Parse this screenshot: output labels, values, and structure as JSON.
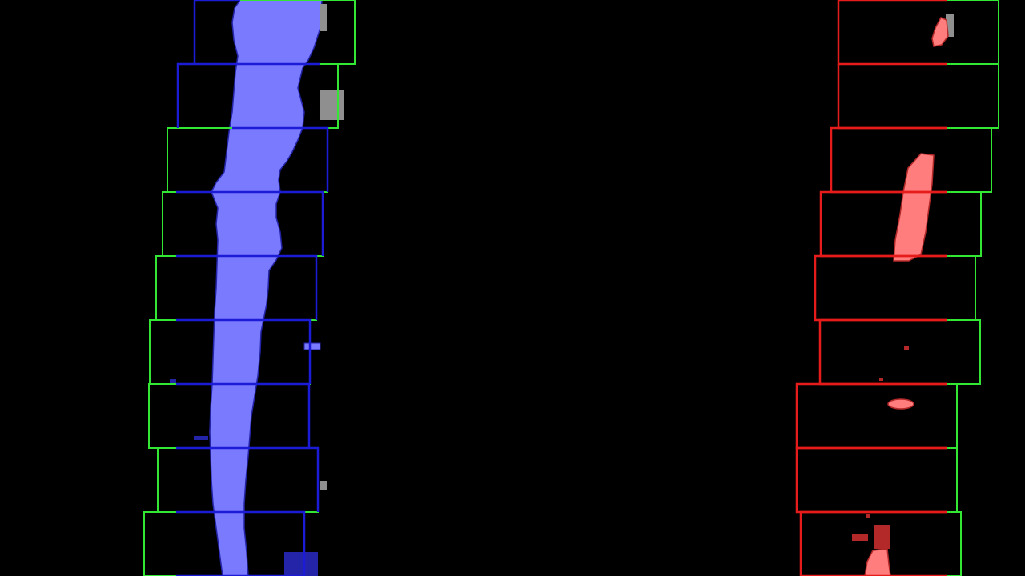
{
  "visualization": {
    "background_color": "#000000",
    "colors": {
      "window_border": "#33e633",
      "left_lane_window_edge": "#1c1cd6",
      "right_lane_window_edge": "#e61c1c",
      "left_lane_pixels": "#7a7aff",
      "left_lane_pixels_noise": "#2424a8",
      "right_lane_pixels": "#ff7d7d",
      "right_lane_pixels_noise": "#b32828",
      "unassigned_pixels": "#8f8f8f"
    },
    "left_lane": {
      "window_count": 9,
      "pixel_color": "left_lane_pixels"
    },
    "right_lane": {
      "window_count": 9,
      "pixel_color": "right_lane_pixels"
    }
  }
}
